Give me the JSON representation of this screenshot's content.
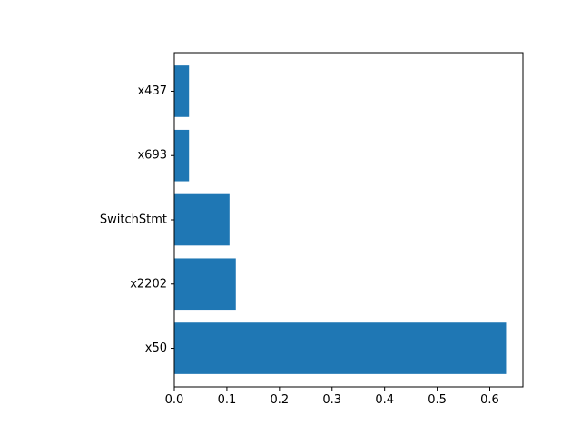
{
  "chart_data": {
    "type": "bar",
    "orientation": "horizontal",
    "categories": [
      "x50",
      "x2202",
      "SwitchStmt",
      "x693",
      "x437"
    ],
    "values": [
      0.631,
      0.117,
      0.105,
      0.028,
      0.028
    ],
    "xticks": [
      "0.0",
      "0.1",
      "0.2",
      "0.3",
      "0.4",
      "0.5",
      "0.6"
    ],
    "xlim": [
      0,
      0.663
    ],
    "title": "",
    "xlabel": "",
    "ylabel": "",
    "bar_color": "#1f77b4",
    "grid": false
  }
}
